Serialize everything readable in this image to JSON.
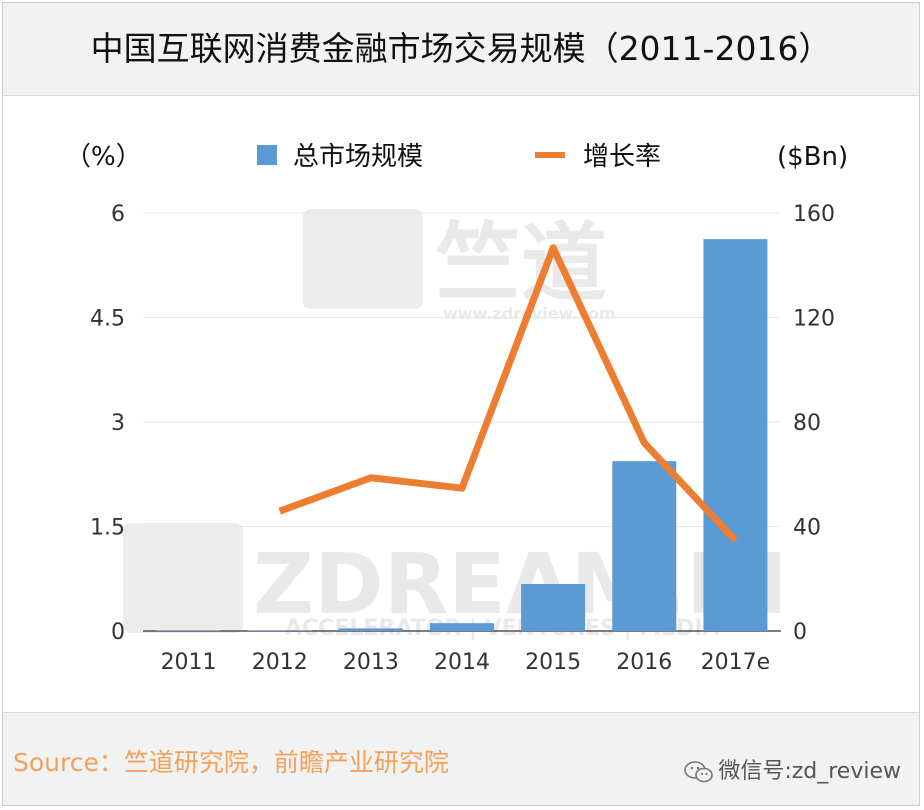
{
  "title": "中国互联网消费金融市场交易规模（2011-2016）",
  "source": "Source：竺道研究院，前瞻产业研究院",
  "wechat": "微信号:zd_review",
  "watermarks": {
    "top_cn": "竺道",
    "top_url": "www.zdreview.com",
    "bottom_brand": "ZDREAM.IN",
    "bottom_tagline": "ACCELERATOR | VENTURES | MEDIA"
  },
  "colors": {
    "bar": "#5b9bd5",
    "line": "#ed7d31"
  },
  "chart_data": {
    "type": "bar",
    "categories": [
      "2011",
      "2012",
      "2013",
      "2014",
      "2015",
      "2016",
      "2017e"
    ],
    "series": [
      {
        "name": "总市场规模",
        "type": "bar",
        "axis": "right",
        "values": [
          0.2,
          0.2,
          1.0,
          3.0,
          18.0,
          65.0,
          150.0
        ]
      },
      {
        "name": "增长率",
        "type": "line",
        "axis": "left",
        "values": [
          null,
          1.72,
          2.2,
          2.05,
          5.5,
          2.7,
          1.3
        ]
      }
    ],
    "y_left": {
      "unit": "（%）",
      "min": 0,
      "max": 6,
      "ticks": [
        "0",
        "1.5",
        "3",
        "4.5",
        "6"
      ]
    },
    "y_right": {
      "unit": "($Bn)",
      "min": 0,
      "max": 160,
      "ticks": [
        "0",
        "40",
        "80",
        "120",
        "160"
      ]
    },
    "grid": true,
    "legend": "top-center"
  }
}
